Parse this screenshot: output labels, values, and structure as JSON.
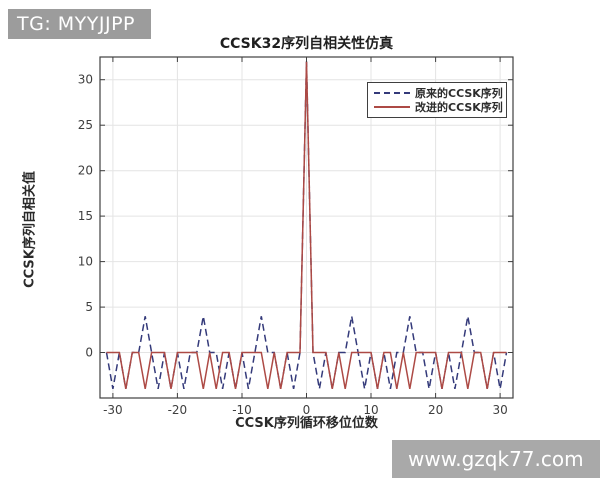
{
  "badges": {
    "top_left": "TG: MYYJJPP",
    "bottom_right": "www.gzqk77.com",
    "top_left_bg": "#9c9c9c",
    "bottom_right_bg": "#a9a9a9"
  },
  "chart_data": {
    "type": "line",
    "title": "CCSK32序列自相关性仿真",
    "xlabel": "CCSK序列循环移位位数",
    "ylabel": "CCSK序列自相关值",
    "xlim": [
      -32,
      32
    ],
    "ylim": [
      -5,
      32.5
    ],
    "xticks": [
      -30,
      -20,
      -10,
      0,
      10,
      20,
      30
    ],
    "yticks": [
      0,
      5,
      10,
      15,
      20,
      25,
      30
    ],
    "grid": true,
    "grid_color": "#e4e4e4",
    "axis_color": "#3f3f3f",
    "tick_label_color": "#3f3f3f",
    "legend_position": "top-right",
    "x": [
      -31,
      -30,
      -29,
      -28,
      -27,
      -26,
      -25,
      -24,
      -23,
      -22,
      -21,
      -20,
      -19,
      -18,
      -17,
      -16,
      -15,
      -14,
      -13,
      -12,
      -11,
      -10,
      -9,
      -8,
      -7,
      -6,
      -5,
      -4,
      -3,
      -2,
      -1,
      0,
      1,
      2,
      3,
      4,
      5,
      6,
      7,
      8,
      9,
      10,
      11,
      12,
      13,
      14,
      15,
      16,
      17,
      18,
      19,
      20,
      21,
      22,
      23,
      24,
      25,
      26,
      27,
      28,
      29,
      30,
      31
    ],
    "series": [
      {
        "name": "原来的CCSK序列",
        "style": "dashed",
        "color": "#343a7a",
        "values": [
          0,
          -4,
          0,
          -4,
          0,
          0,
          4,
          0,
          -4,
          0,
          -4,
          0,
          -4,
          0,
          0,
          4,
          0,
          0,
          -4,
          0,
          -4,
          0,
          -4,
          0,
          4,
          0,
          0,
          -4,
          0,
          -4,
          0,
          32,
          0,
          -4,
          0,
          -4,
          0,
          0,
          4,
          0,
          -4,
          0,
          -4,
          0,
          -4,
          0,
          0,
          4,
          0,
          0,
          -4,
          0,
          -4,
          0,
          -4,
          0,
          4,
          0,
          0,
          -4,
          0,
          -4,
          0
        ]
      },
      {
        "name": "改进的CCSK序列",
        "style": "solid",
        "color": "#ad4a45",
        "values": [
          0,
          0,
          0,
          -4,
          0,
          0,
          -4,
          0,
          0,
          0,
          -4,
          0,
          0,
          0,
          0,
          -4,
          0,
          -4,
          0,
          0,
          -4,
          0,
          0,
          0,
          0,
          -4,
          0,
          -4,
          0,
          0,
          0,
          32,
          0,
          0,
          0,
          -4,
          0,
          -4,
          0,
          0,
          0,
          0,
          -4,
          0,
          0,
          -4,
          0,
          -4,
          0,
          0,
          0,
          0,
          -4,
          0,
          0,
          0,
          -4,
          0,
          0,
          -4,
          0,
          0,
          0
        ]
      }
    ]
  }
}
